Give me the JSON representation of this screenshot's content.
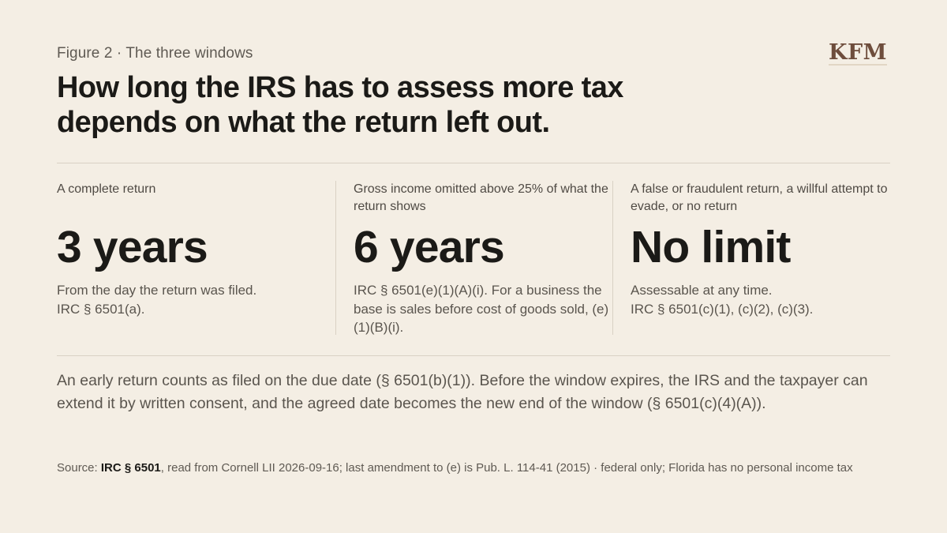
{
  "header": {
    "eyebrow": "Figure 2 · The three windows",
    "logo_text": "KFM",
    "title": "How long the IRS has to assess more tax depends on what the return left out."
  },
  "columns": [
    {
      "condition": "A complete return",
      "period": "3 years",
      "note_line1": "From the day the return was filed.",
      "note_line2": "IRC § 6501(a)."
    },
    {
      "condition": "Gross income omitted above 25% of what the return shows",
      "period": "6 years",
      "note": "IRC § 6501(e)(1)(A)(i). For a business the base is sales before cost of goods sold, (e)(1)(B)(i)."
    },
    {
      "condition": "A false or fraudulent return, a willful attempt to evade, or no return",
      "period": "No limit",
      "note_line1": "Assessable at any time.",
      "note_line2": "IRC § 6501(c)(1), (c)(2), (c)(3)."
    }
  ],
  "body_text": "An early return counts as filed on the due date (§ 6501(b)(1)). Before the window expires, the IRS and the taxpayer can extend it by written consent, and the agreed date becomes the new end of the window (§ 6501(c)(4)(A)).",
  "source": {
    "prefix": "Source: ",
    "citation": "IRC § 6501",
    "rest": ", read from Cornell LII 2026-09-16; last amendment to (e) is Pub. L. 114-41 (2015) · federal only; Florida has no personal income tax"
  },
  "colors": {
    "background": "#f4eee4",
    "text": "#1b1a17",
    "muted": "#5a554e",
    "rule": "#d9d1c4",
    "logo": "#6e4d3c"
  }
}
